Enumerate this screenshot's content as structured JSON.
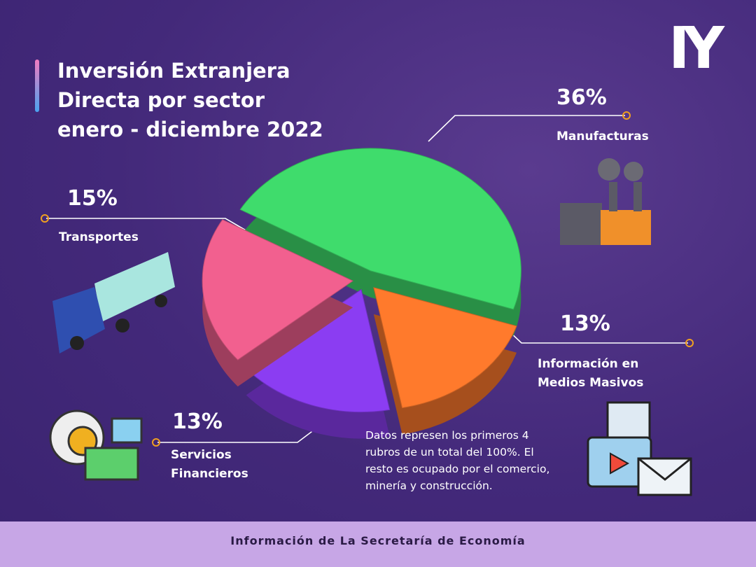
{
  "chart_data": {
    "type": "pie",
    "title": [
      "Inversión Extranjera",
      "Directa por sector",
      "enero - diciembre 2022"
    ],
    "categories": [
      "Manufacturas",
      "Información en Medios Masivos",
      "Servicios Financieros",
      "Transportes"
    ],
    "values": [
      36,
      13,
      13,
      15
    ],
    "value_labels": [
      "36%",
      "13%",
      "13%",
      "15%"
    ],
    "colors": [
      "#3fdc6c",
      "#ff7a2c",
      "#8b3df2",
      "#f2608f"
    ],
    "note": "Datos represen los primeros 4 rubros de un total del 100%.  El resto es ocupado por el comercio, minería y construcción.",
    "logo": "IY",
    "footer": "Información de La Secretaría de Economía"
  }
}
